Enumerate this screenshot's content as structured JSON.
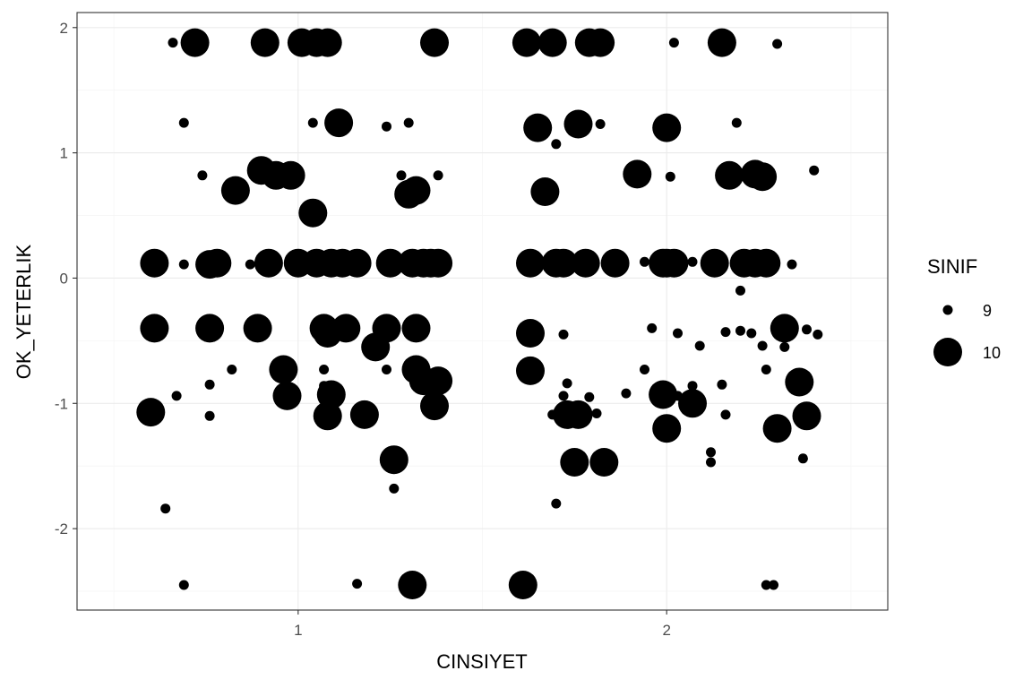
{
  "chart_data": {
    "type": "scatter",
    "xlabel": "CINSIYET",
    "ylabel": "OK_YETERLIK",
    "xlim": [
      0.4,
      2.6
    ],
    "ylim": [
      -2.65,
      2.12
    ],
    "x_ticks": [
      1,
      2
    ],
    "y_ticks": [
      -2,
      -1,
      0,
      1,
      2
    ],
    "grid": true,
    "legend": {
      "title": "SINIF",
      "position": "right",
      "entries": [
        "9",
        "10"
      ]
    },
    "colors": {
      "points": "#000000",
      "grid_major": "#ebebeb",
      "grid_minor": "#f5f5f5",
      "panel_border": "#333333"
    },
    "series": [
      {
        "name": "9",
        "points": [
          [
            0.66,
            1.88
          ],
          [
            2.02,
            1.88
          ],
          [
            2.3,
            1.87
          ],
          [
            0.69,
            1.24
          ],
          [
            1.04,
            1.24
          ],
          [
            1.24,
            1.21
          ],
          [
            1.3,
            1.24
          ],
          [
            1.82,
            1.23
          ],
          [
            2.19,
            1.24
          ],
          [
            1.7,
            1.07
          ],
          [
            0.74,
            0.82
          ],
          [
            1.28,
            0.82
          ],
          [
            1.38,
            0.82
          ],
          [
            2.01,
            0.81
          ],
          [
            2.4,
            0.86
          ],
          [
            0.69,
            0.11
          ],
          [
            0.87,
            0.11
          ],
          [
            1.94,
            0.13
          ],
          [
            2.07,
            0.13
          ],
          [
            2.34,
            0.11
          ],
          [
            2.2,
            -0.1
          ],
          [
            1.72,
            -0.45
          ],
          [
            1.96,
            -0.4
          ],
          [
            2.03,
            -0.44
          ],
          [
            2.09,
            -0.54
          ],
          [
            2.16,
            -0.43
          ],
          [
            2.2,
            -0.42
          ],
          [
            2.23,
            -0.44
          ],
          [
            2.38,
            -0.41
          ],
          [
            2.41,
            -0.45
          ],
          [
            2.32,
            -0.55
          ],
          [
            2.26,
            -0.54
          ],
          [
            0.82,
            -0.73
          ],
          [
            1.07,
            -0.73
          ],
          [
            1.24,
            -0.73
          ],
          [
            1.94,
            -0.73
          ],
          [
            2.27,
            -0.73
          ],
          [
            0.76,
            -0.85
          ],
          [
            1.07,
            -0.86
          ],
          [
            1.73,
            -0.84
          ],
          [
            2.07,
            -0.86
          ],
          [
            2.15,
            -0.85
          ],
          [
            0.67,
            -0.94
          ],
          [
            1.72,
            -0.94
          ],
          [
            1.79,
            -0.95
          ],
          [
            1.89,
            -0.92
          ],
          [
            2.03,
            -0.94
          ],
          [
            0.76,
            -1.1
          ],
          [
            1.69,
            -1.09
          ],
          [
            1.81,
            -1.08
          ],
          [
            2.16,
            -1.09
          ],
          [
            2.12,
            -1.39
          ],
          [
            2.12,
            -1.47
          ],
          [
            2.37,
            -1.44
          ],
          [
            1.26,
            -1.68
          ],
          [
            1.7,
            -1.8
          ],
          [
            0.64,
            -1.84
          ],
          [
            0.69,
            -2.45
          ],
          [
            1.16,
            -2.44
          ],
          [
            2.27,
            -2.45
          ],
          [
            2.29,
            -2.45
          ]
        ]
      },
      {
        "name": "10",
        "points": [
          [
            0.72,
            1.88
          ],
          [
            0.91,
            1.88
          ],
          [
            1.01,
            1.88
          ],
          [
            1.05,
            1.88
          ],
          [
            1.08,
            1.88
          ],
          [
            1.37,
            1.88
          ],
          [
            1.62,
            1.88
          ],
          [
            1.69,
            1.88
          ],
          [
            1.79,
            1.88
          ],
          [
            1.82,
            1.88
          ],
          [
            2.15,
            1.88
          ],
          [
            1.11,
            1.24
          ],
          [
            1.65,
            1.2
          ],
          [
            1.76,
            1.23
          ],
          [
            2.0,
            1.2
          ],
          [
            0.9,
            0.86
          ],
          [
            0.94,
            0.82
          ],
          [
            0.98,
            0.82
          ],
          [
            1.92,
            0.83
          ],
          [
            2.17,
            0.82
          ],
          [
            2.24,
            0.83
          ],
          [
            2.26,
            0.81
          ],
          [
            0.83,
            0.7
          ],
          [
            1.3,
            0.67
          ],
          [
            1.32,
            0.7
          ],
          [
            1.67,
            0.69
          ],
          [
            1.04,
            0.52
          ],
          [
            0.61,
            0.12
          ],
          [
            0.76,
            0.11
          ],
          [
            0.78,
            0.12
          ],
          [
            0.92,
            0.12
          ],
          [
            1.0,
            0.12
          ],
          [
            1.05,
            0.12
          ],
          [
            1.09,
            0.12
          ],
          [
            1.12,
            0.12
          ],
          [
            1.16,
            0.12
          ],
          [
            1.25,
            0.12
          ],
          [
            1.31,
            0.12
          ],
          [
            1.34,
            0.12
          ],
          [
            1.36,
            0.12
          ],
          [
            1.38,
            0.12
          ],
          [
            1.63,
            0.12
          ],
          [
            1.7,
            0.12
          ],
          [
            1.72,
            0.12
          ],
          [
            1.78,
            0.12
          ],
          [
            1.86,
            0.12
          ],
          [
            1.99,
            0.12
          ],
          [
            2.0,
            0.12
          ],
          [
            2.02,
            0.12
          ],
          [
            2.13,
            0.12
          ],
          [
            2.21,
            0.12
          ],
          [
            2.24,
            0.12
          ],
          [
            2.27,
            0.12
          ],
          [
            0.61,
            -0.4
          ],
          [
            0.76,
            -0.4
          ],
          [
            0.89,
            -0.4
          ],
          [
            1.07,
            -0.4
          ],
          [
            1.08,
            -0.44
          ],
          [
            1.13,
            -0.4
          ],
          [
            1.24,
            -0.4
          ],
          [
            1.32,
            -0.4
          ],
          [
            1.63,
            -0.44
          ],
          [
            2.32,
            -0.4
          ],
          [
            1.21,
            -0.55
          ],
          [
            0.96,
            -0.73
          ],
          [
            1.32,
            -0.73
          ],
          [
            1.63,
            -0.74
          ],
          [
            1.34,
            -0.82
          ],
          [
            1.38,
            -0.82
          ],
          [
            2.36,
            -0.83
          ],
          [
            0.97,
            -0.94
          ],
          [
            1.09,
            -0.93
          ],
          [
            1.99,
            -0.93
          ],
          [
            0.6,
            -1.07
          ],
          [
            1.08,
            -1.1
          ],
          [
            1.18,
            -1.09
          ],
          [
            1.37,
            -1.02
          ],
          [
            1.73,
            -1.09
          ],
          [
            1.76,
            -1.09
          ],
          [
            2.07,
            -1.0
          ],
          [
            2.38,
            -1.1
          ],
          [
            2.0,
            -1.2
          ],
          [
            2.3,
            -1.2
          ],
          [
            1.26,
            -1.45
          ],
          [
            1.75,
            -1.47
          ],
          [
            1.83,
            -1.47
          ],
          [
            1.31,
            -2.45
          ],
          [
            1.61,
            -2.45
          ]
        ]
      }
    ]
  }
}
